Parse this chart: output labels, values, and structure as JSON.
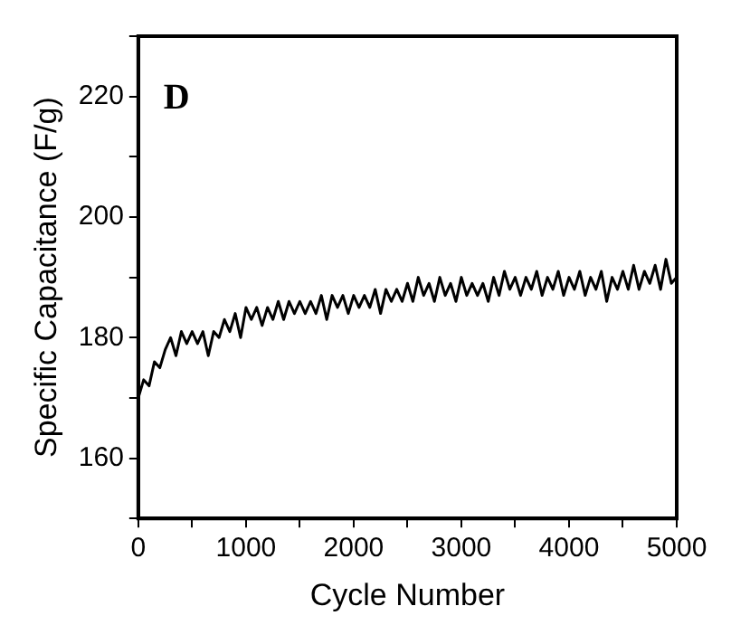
{
  "chart_data": {
    "type": "line",
    "xlabel": "Cycle Number",
    "ylabel": "Specific Capacitance (F/g)",
    "annotations": [
      "D"
    ],
    "color": "#000000",
    "grid": false,
    "legend": false,
    "marker": "none",
    "line_style": "solid",
    "xlim": [
      0,
      5000
    ],
    "xticks": [
      0,
      {
        "value": 500,
        "label": null
      },
      1000,
      {
        "value": 1500,
        "label": null
      },
      2000,
      {
        "value": 2500,
        "label": null
      },
      3000,
      {
        "value": 3500,
        "label": null
      },
      4000,
      {
        "value": 4500,
        "label": null
      },
      5000
    ],
    "ylim": [
      150,
      230
    ],
    "yticks": [
      {
        "value": 150,
        "label": null
      },
      160,
      {
        "value": 170,
        "label": null
      },
      180,
      {
        "value": 190,
        "label": null
      },
      200,
      {
        "value": 210,
        "label": null
      },
      220,
      {
        "value": 230,
        "label": null
      }
    ],
    "x": [
      0,
      50,
      100,
      150,
      200,
      250,
      300,
      350,
      400,
      450,
      500,
      550,
      600,
      650,
      700,
      750,
      800,
      850,
      900,
      950,
      1000,
      1050,
      1100,
      1150,
      1200,
      1250,
      1300,
      1350,
      1400,
      1450,
      1500,
      1550,
      1600,
      1650,
      1700,
      1750,
      1800,
      1850,
      1900,
      1950,
      2000,
      2050,
      2100,
      2150,
      2200,
      2250,
      2300,
      2350,
      2400,
      2450,
      2500,
      2550,
      2600,
      2650,
      2700,
      2750,
      2800,
      2850,
      2900,
      2950,
      3000,
      3050,
      3100,
      3150,
      3200,
      3250,
      3300,
      3350,
      3400,
      3450,
      3500,
      3550,
      3600,
      3650,
      3700,
      3750,
      3800,
      3850,
      3900,
      3950,
      4000,
      4050,
      4100,
      4150,
      4200,
      4250,
      4300,
      4350,
      4400,
      4450,
      4500,
      4550,
      4600,
      4650,
      4700,
      4750,
      4800,
      4850,
      4900,
      4950,
      5000
    ],
    "values": [
      170,
      173,
      172,
      176,
      175,
      178,
      180,
      177,
      181,
      179,
      181,
      179,
      181,
      177,
      181,
      180,
      183,
      181,
      184,
      180,
      185,
      183,
      185,
      182,
      185,
      183,
      186,
      183,
      186,
      184,
      186,
      184,
      186,
      184,
      187,
      183,
      187,
      185,
      187,
      184,
      187,
      185,
      187,
      185,
      188,
      184,
      188,
      186,
      188,
      186,
      189,
      186,
      190,
      187,
      189,
      186,
      190,
      187,
      189,
      186,
      190,
      187,
      189,
      187,
      189,
      186,
      190,
      187,
      191,
      188,
      190,
      187,
      190,
      188,
      191,
      187,
      190,
      188,
      191,
      187,
      190,
      188,
      191,
      187,
      190,
      188,
      191,
      186,
      190,
      188,
      191,
      188,
      192,
      188,
      191,
      189,
      192,
      188,
      193,
      189,
      190
    ]
  }
}
